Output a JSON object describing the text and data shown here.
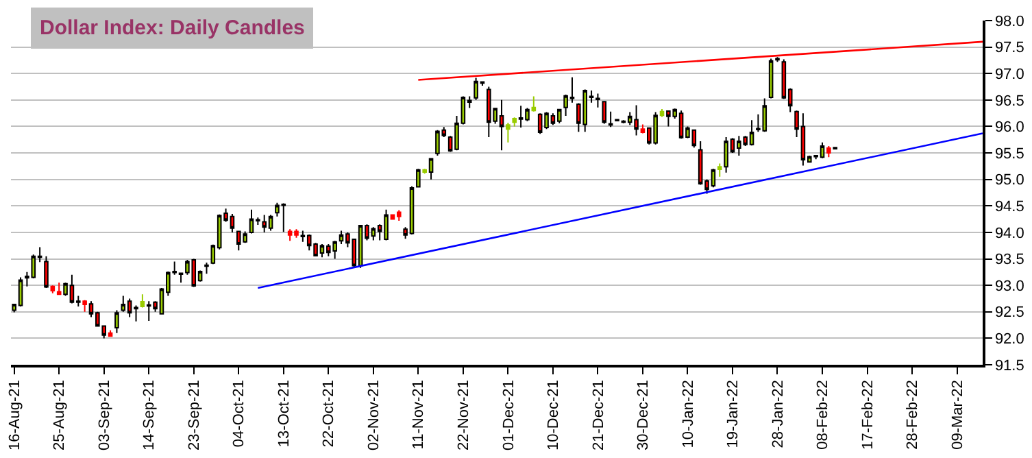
{
  "chart_data": {
    "type": "candlestick",
    "title": "Dollar Index: Daily Candles",
    "categories": [
      "16-Aug-21",
      null,
      null,
      null,
      null,
      null,
      null,
      "25-Aug-21",
      null,
      null,
      null,
      null,
      null,
      null,
      "03-Sep-21",
      null,
      null,
      null,
      null,
      null,
      null,
      "14-Sep-21",
      null,
      null,
      null,
      null,
      null,
      null,
      "23-Sep-21",
      null,
      null,
      null,
      null,
      null,
      null,
      "04-Oct-21",
      null,
      null,
      null,
      null,
      null,
      null,
      "13-Oct-21",
      null,
      null,
      null,
      null,
      null,
      null,
      "22-Oct-21",
      null,
      null,
      null,
      null,
      null,
      null,
      "02-Nov-21",
      null,
      null,
      null,
      null,
      null,
      null,
      "11-Nov-21",
      null,
      null,
      null,
      null,
      null,
      null,
      "22-Nov-21",
      null,
      null,
      null,
      null,
      null,
      null,
      "01-Dec-21",
      null,
      null,
      null,
      null,
      null,
      null,
      "10-Dec-21",
      null,
      null,
      null,
      null,
      null,
      null,
      "21-Dec-21",
      null,
      null,
      null,
      null,
      null,
      null,
      "30-Dec-21",
      null,
      null,
      null,
      null,
      null,
      null,
      "10-Jan-22",
      null,
      null,
      null,
      null,
      null,
      null,
      "19-Jan-22",
      null,
      null,
      null,
      null,
      null,
      null,
      "28-Jan-22",
      null,
      null,
      null,
      null,
      null,
      null,
      "08-Feb-22",
      null,
      null,
      null,
      null,
      null,
      null,
      "17-Feb-22",
      null,
      null,
      null,
      null,
      null,
      null,
      "28-Feb-22",
      null,
      null,
      null,
      null,
      null,
      null,
      "09-Mar-22",
      null,
      null,
      null,
      null
    ],
    "ohlc": [
      [
        92.53,
        92.65,
        92.49,
        92.64
      ],
      [
        92.62,
        93.15,
        92.6,
        93.1
      ],
      [
        93.14,
        93.25,
        92.98,
        93.17
      ],
      [
        93.15,
        93.58,
        93.13,
        93.55
      ],
      [
        93.53,
        93.72,
        93.44,
        93.55
      ],
      [
        93.45,
        93.55,
        92.95,
        92.97
      ],
      [
        92.98,
        93.0,
        92.85,
        92.9
      ],
      [
        92.88,
        93.05,
        92.82,
        92.83
      ],
      [
        92.83,
        93.05,
        92.8,
        93.03
      ],
      [
        93.0,
        93.2,
        92.66,
        92.68
      ],
      [
        92.68,
        92.8,
        92.6,
        92.7
      ],
      [
        92.7,
        92.72,
        92.5,
        92.64
      ],
      [
        92.65,
        92.7,
        92.4,
        92.46
      ],
      [
        92.48,
        92.5,
        92.22,
        92.23
      ],
      [
        92.23,
        92.23,
        92.0,
        92.06
      ],
      [
        92.1,
        92.15,
        92.03,
        92.04
      ],
      [
        92.2,
        92.53,
        92.1,
        92.48
      ],
      [
        92.53,
        92.8,
        92.5,
        92.64
      ],
      [
        92.7,
        92.75,
        92.4,
        92.48
      ],
      [
        92.58,
        92.62,
        92.32,
        92.56
      ],
      [
        92.6,
        92.83,
        92.58,
        92.69
      ],
      [
        92.61,
        92.7,
        92.33,
        92.63
      ],
      [
        92.68,
        92.7,
        92.5,
        92.56
      ],
      [
        92.46,
        92.95,
        92.45,
        92.93
      ],
      [
        92.87,
        93.26,
        92.8,
        93.24
      ],
      [
        93.24,
        93.45,
        93.2,
        93.26
      ],
      [
        93.23,
        93.24,
        93.05,
        93.21
      ],
      [
        93.24,
        93.48,
        93.2,
        93.45
      ],
      [
        93.48,
        93.5,
        92.97,
        92.99
      ],
      [
        93.09,
        93.28,
        93.07,
        93.26
      ],
      [
        93.36,
        93.43,
        93.22,
        93.38
      ],
      [
        93.42,
        93.77,
        93.4,
        93.75
      ],
      [
        93.71,
        94.34,
        93.68,
        94.32
      ],
      [
        94.36,
        94.45,
        94.2,
        94.23
      ],
      [
        94.3,
        94.35,
        94.0,
        94.08
      ],
      [
        94.02,
        94.03,
        93.66,
        93.78
      ],
      [
        93.82,
        94.02,
        93.8,
        93.97
      ],
      [
        94.0,
        94.43,
        93.98,
        94.25
      ],
      [
        94.22,
        94.28,
        94.14,
        94.24
      ],
      [
        94.2,
        94.33,
        94.0,
        94.1
      ],
      [
        94.08,
        94.33,
        94.03,
        94.3
      ],
      [
        94.37,
        94.56,
        94.3,
        94.51
      ],
      [
        94.53,
        94.55,
        94.01,
        94.51
      ],
      [
        94.02,
        94.06,
        93.84,
        93.95
      ],
      [
        94.02,
        94.06,
        93.9,
        93.95
      ],
      [
        93.94,
        94.03,
        93.82,
        93.92
      ],
      [
        93.94,
        93.96,
        93.66,
        93.75
      ],
      [
        93.78,
        93.8,
        93.55,
        93.56
      ],
      [
        93.61,
        93.78,
        93.53,
        93.75
      ],
      [
        93.74,
        93.78,
        93.55,
        93.62
      ],
      [
        93.65,
        93.84,
        93.5,
        93.82
      ],
      [
        93.84,
        94.03,
        93.78,
        93.95
      ],
      [
        93.97,
        94.0,
        93.72,
        93.8
      ],
      [
        93.87,
        93.87,
        93.35,
        93.37
      ],
      [
        93.37,
        94.14,
        93.33,
        94.13
      ],
      [
        94.13,
        94.15,
        93.85,
        93.89
      ],
      [
        93.93,
        94.1,
        93.85,
        94.07
      ],
      [
        94.13,
        94.15,
        93.85,
        94.02
      ],
      [
        93.87,
        94.43,
        93.85,
        94.33
      ],
      [
        94.33,
        94.34,
        94.24,
        94.25
      ],
      [
        94.38,
        94.42,
        94.22,
        94.3
      ],
      [
        94.06,
        94.1,
        93.88,
        93.95
      ],
      [
        93.98,
        94.87,
        93.96,
        94.84
      ],
      [
        94.86,
        95.2,
        94.85,
        95.18
      ],
      [
        95.14,
        95.2,
        95.11,
        95.18
      ],
      [
        95.14,
        95.4,
        95.0,
        95.39
      ],
      [
        95.49,
        95.93,
        95.45,
        95.91
      ],
      [
        95.93,
        95.99,
        95.8,
        95.83
      ],
      [
        95.8,
        95.82,
        95.52,
        95.54
      ],
      [
        95.57,
        96.2,
        95.55,
        96.06
      ],
      [
        96.06,
        96.57,
        96.04,
        96.55
      ],
      [
        96.46,
        96.57,
        96.35,
        96.49
      ],
      [
        96.54,
        96.92,
        96.5,
        96.85
      ],
      [
        96.82,
        96.85,
        96.77,
        96.84
      ],
      [
        96.7,
        96.75,
        95.8,
        96.08
      ],
      [
        96.1,
        96.35,
        96.05,
        96.34
      ],
      [
        96.2,
        96.5,
        95.55,
        96.0
      ],
      [
        95.95,
        96.07,
        95.7,
        96.03
      ],
      [
        96.08,
        96.17,
        96.0,
        96.15
      ],
      [
        96.14,
        96.39,
        95.98,
        96.16
      ],
      [
        96.13,
        96.35,
        96.1,
        96.32
      ],
      [
        96.3,
        96.57,
        96.28,
        96.36
      ],
      [
        96.23,
        96.25,
        95.86,
        95.89
      ],
      [
        95.98,
        96.27,
        95.95,
        96.25
      ],
      [
        96.2,
        96.25,
        96.03,
        96.06
      ],
      [
        96.1,
        96.33,
        96.06,
        96.32
      ],
      [
        96.36,
        96.6,
        96.2,
        96.58
      ],
      [
        96.53,
        96.93,
        96.45,
        96.55
      ],
      [
        96.42,
        96.44,
        95.9,
        96.06
      ],
      [
        96.04,
        96.7,
        95.9,
        96.68
      ],
      [
        96.55,
        96.68,
        96.45,
        96.57
      ],
      [
        96.51,
        96.62,
        96.36,
        96.53
      ],
      [
        96.47,
        96.48,
        96.05,
        96.08
      ],
      [
        96.05,
        96.28,
        95.99,
        96.03
      ],
      [
        96.13,
        96.14,
        96.1,
        96.11
      ],
      [
        96.1,
        96.12,
        96.06,
        96.08
      ],
      [
        96.08,
        96.27,
        96.03,
        96.19
      ],
      [
        96.13,
        96.4,
        95.83,
        95.95
      ],
      [
        95.95,
        96.04,
        95.87,
        95.89
      ],
      [
        95.97,
        95.98,
        95.66,
        95.69
      ],
      [
        95.69,
        96.27,
        95.66,
        96.21
      ],
      [
        96.21,
        96.33,
        96.18,
        96.28
      ],
      [
        96.29,
        96.3,
        96.0,
        96.19
      ],
      [
        96.19,
        96.34,
        96.15,
        96.32
      ],
      [
        96.25,
        96.3,
        95.77,
        95.79
      ],
      [
        95.8,
        96.0,
        95.78,
        95.97
      ],
      [
        95.93,
        95.94,
        95.6,
        95.64
      ],
      [
        95.56,
        95.72,
        94.9,
        94.92
      ],
      [
        94.97,
        95.0,
        94.73,
        94.81
      ],
      [
        94.88,
        95.2,
        94.85,
        95.18
      ],
      [
        95.19,
        95.3,
        95.05,
        95.24
      ],
      [
        95.24,
        95.8,
        95.13,
        95.72
      ],
      [
        95.76,
        95.78,
        95.5,
        95.52
      ],
      [
        95.59,
        95.82,
        95.45,
        95.72
      ],
      [
        95.8,
        95.82,
        95.63,
        95.66
      ],
      [
        95.66,
        96.12,
        95.64,
        95.89
      ],
      [
        95.94,
        96.23,
        95.9,
        95.96
      ],
      [
        95.92,
        96.53,
        95.9,
        96.39
      ],
      [
        96.55,
        97.28,
        96.53,
        97.24
      ],
      [
        97.26,
        97.31,
        97.22,
        97.28
      ],
      [
        97.22,
        97.27,
        96.52,
        96.54
      ],
      [
        96.7,
        96.72,
        96.27,
        96.39
      ],
      [
        96.28,
        96.3,
        95.8,
        95.95
      ],
      [
        96.0,
        96.25,
        95.26,
        95.37
      ],
      [
        95.33,
        95.45,
        95.32,
        95.43
      ],
      [
        95.43,
        95.46,
        95.38,
        95.45
      ],
      [
        95.42,
        95.7,
        95.4,
        95.63
      ],
      [
        95.59,
        95.63,
        95.42,
        95.5
      ],
      [
        95.58,
        95.61,
        95.57,
        95.6
      ],
      null,
      null,
      null,
      null,
      null,
      null,
      null,
      null,
      null,
      null,
      null,
      null,
      null,
      null,
      null,
      null,
      null,
      null,
      null,
      null,
      null,
      null,
      null
    ],
    "colors": [
      "#99cc00",
      "#99cc00",
      "#000000",
      "#99cc00",
      "#000000",
      "#ff0000",
      "#ff0000",
      "#ff0000",
      "#99cc00",
      "#ff0000",
      "#000000",
      "#ff0000",
      "#ff0000",
      "#ff0000",
      "#ff0000",
      "#ff0000",
      "#99cc00",
      "#99cc00",
      "#ff0000",
      "#000000",
      "#99cc00",
      "#000000",
      "#ff0000",
      "#99cc00",
      "#99cc00",
      "#000000",
      "#000000",
      "#99cc00",
      "#ff0000",
      "#99cc00",
      "#000000",
      "#99cc00",
      "#99cc00",
      "#ff0000",
      "#ff0000",
      "#ff0000",
      "#99cc00",
      "#99cc00",
      "#000000",
      "#ff0000",
      "#99cc00",
      "#99cc00",
      "#000000",
      "#ff0000",
      "#ff0000",
      "#000000",
      "#ff0000",
      "#ff0000",
      "#99cc00",
      "#ff0000",
      "#99cc00",
      "#99cc00",
      "#ff0000",
      "#ff0000",
      "#99cc00",
      "#ff0000",
      "#99cc00",
      "#ff0000",
      "#99cc00",
      "#ff0000",
      "#ff0000",
      "#ff0000",
      "#99cc00",
      "#99cc00",
      "#99cc00",
      "#99cc00",
      "#99cc00",
      "#ff0000",
      "#ff0000",
      "#99cc00",
      "#99cc00",
      "#000000",
      "#99cc00",
      "#000000",
      "#ff0000",
      "#99cc00",
      "#ff0000",
      "#99cc00",
      "#99cc00",
      "#000000",
      "#99cc00",
      "#99cc00",
      "#ff0000",
      "#99cc00",
      "#ff0000",
      "#99cc00",
      "#99cc00",
      "#000000",
      "#ff0000",
      "#99cc00",
      "#000000",
      "#000000",
      "#ff0000",
      "#000000",
      "#000000",
      "#000000",
      "#99cc00",
      "#ff0000",
      "#ff0000",
      "#ff0000",
      "#99cc00",
      "#99cc00",
      "#ff0000",
      "#99cc00",
      "#ff0000",
      "#99cc00",
      "#ff0000",
      "#ff0000",
      "#ff0000",
      "#99cc00",
      "#99cc00",
      "#99cc00",
      "#ff0000",
      "#99cc00",
      "#ff0000",
      "#99cc00",
      "#000000",
      "#99cc00",
      "#99cc00",
      "#000000",
      "#ff0000",
      "#ff0000",
      "#ff0000",
      "#ff0000",
      "#99cc00",
      "#000000",
      "#99cc00",
      "#ff0000",
      "#000000",
      null,
      null,
      null,
      null,
      null,
      null,
      null,
      null,
      null,
      null,
      null,
      null,
      null,
      null,
      null,
      null,
      null,
      null,
      null,
      null,
      null,
      null,
      null
    ],
    "series": [
      {
        "type": "line",
        "color": "#ff0000",
        "values": [
          null,
          null,
          null,
          null,
          null,
          null,
          null,
          null,
          null,
          null,
          null,
          null,
          null,
          null,
          null,
          null,
          null,
          null,
          null,
          null,
          null,
          null,
          null,
          null,
          null,
          null,
          null,
          null,
          null,
          null,
          null,
          null,
          null,
          null,
          null,
          null,
          null,
          null,
          null,
          null,
          null,
          null,
          null,
          null,
          null,
          null,
          null,
          null,
          null,
          null,
          null,
          null,
          null,
          null,
          null,
          null,
          null,
          null,
          null,
          null,
          null,
          null,
          null,
          96.88,
          null,
          null,
          null,
          null,
          null,
          null,
          null,
          null,
          null,
          null,
          null,
          null,
          null,
          null,
          null,
          null,
          null,
          null,
          null,
          null,
          null,
          null,
          null,
          null,
          null,
          null,
          null,
          null,
          null,
          null,
          null,
          null,
          null,
          null,
          null,
          null,
          null,
          null,
          null,
          null,
          null,
          null,
          null,
          null,
          null,
          null,
          null,
          null,
          null,
          null,
          null,
          null,
          null,
          null,
          null,
          null,
          null,
          null,
          null,
          null,
          null,
          null,
          null,
          null,
          null,
          null,
          null,
          null,
          null,
          null,
          null,
          null,
          null,
          null,
          null,
          null,
          null,
          null,
          null,
          null,
          null,
          null,
          null,
          null,
          null,
          null,
          null,
          97.6
        ]
      },
      {
        "type": "line",
        "color": "#0000ff",
        "values": [
          null,
          null,
          null,
          null,
          null,
          null,
          null,
          null,
          null,
          null,
          null,
          null,
          null,
          null,
          null,
          null,
          null,
          null,
          null,
          null,
          null,
          null,
          null,
          null,
          null,
          null,
          null,
          null,
          null,
          null,
          null,
          null,
          null,
          null,
          null,
          null,
          null,
          null,
          92.95,
          null,
          null,
          null,
          null,
          null,
          null,
          null,
          null,
          null,
          null,
          null,
          null,
          null,
          null,
          null,
          null,
          null,
          null,
          null,
          null,
          null,
          null,
          null,
          null,
          null,
          null,
          null,
          null,
          null,
          null,
          null,
          null,
          null,
          null,
          null,
          null,
          null,
          null,
          null,
          null,
          null,
          null,
          null,
          null,
          null,
          null,
          null,
          null,
          null,
          null,
          null,
          null,
          null,
          null,
          null,
          null,
          null,
          null,
          null,
          null,
          null,
          null,
          null,
          null,
          null,
          null,
          null,
          null,
          null,
          null,
          null,
          null,
          null,
          null,
          null,
          null,
          null,
          null,
          null,
          null,
          null,
          null,
          null,
          null,
          null,
          null,
          null,
          null,
          null,
          null,
          null,
          null,
          null,
          null,
          null,
          null,
          null,
          null,
          null,
          null,
          null,
          null,
          null,
          null,
          null,
          null,
          null,
          null,
          null,
          null,
          null,
          null,
          95.87
        ]
      }
    ],
    "ylim": [
      91.5,
      98.0
    ],
    "yticks": [
      {
        "value": 91.5,
        "label": "91.5"
      },
      {
        "value": 92,
        "label": "92.0"
      },
      {
        "value": 92.5,
        "label": "92.5"
      },
      {
        "value": 93,
        "label": "93.0"
      },
      {
        "value": 93.5,
        "label": "93.5"
      },
      {
        "value": 94,
        "label": "94.0"
      },
      {
        "value": 94.5,
        "label": "94.5"
      },
      {
        "value": 95,
        "label": "95.0"
      },
      {
        "value": 95.5,
        "label": "95.5"
      },
      {
        "value": 96,
        "label": "96.0"
      },
      {
        "value": 96.5,
        "label": "96.5"
      },
      {
        "value": 97,
        "label": "97.0"
      },
      {
        "value": 97.5,
        "label": "97.5"
      },
      {
        "value": 98,
        "label": "98.0"
      }
    ],
    "grid": "y"
  }
}
